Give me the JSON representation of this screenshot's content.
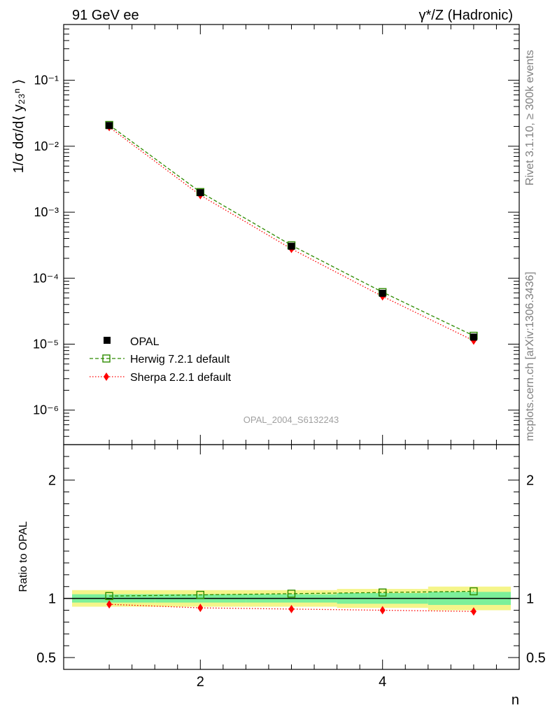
{
  "header": {
    "left": "91 GeV ee",
    "right": "γ*/Z (Hadronic)"
  },
  "side_notes": {
    "rivet": "Rivet 3.1.10, ≥ 300k events",
    "mcplots": "mcplots.cern.ch [arXiv:1306.3436]"
  },
  "analysis_id": "OPAL_2004_S6132243",
  "chart_data": [
    {
      "type": "line",
      "panel": "main",
      "ylabel": "1/σ dσ/d⟨ y₂₃ⁿ ⟩",
      "yscale": "log",
      "ylim": [
        3e-07,
        0.7
      ],
      "xlim": [
        0.5,
        5.5
      ],
      "x": [
        1,
        2,
        3,
        4,
        5
      ],
      "yticks": [
        {
          "value": 1e-06,
          "label": "10⁻⁶"
        },
        {
          "value": 1e-05,
          "label": "10⁻⁵"
        },
        {
          "value": 0.0001,
          "label": "10⁻⁴"
        },
        {
          "value": 0.001,
          "label": "10⁻³"
        },
        {
          "value": 0.01,
          "label": "10⁻²"
        },
        {
          "value": 0.1,
          "label": "10⁻¹"
        }
      ],
      "series": [
        {
          "name": "OPAL",
          "color": "#000000",
          "marker": "filled-square",
          "values": [
            0.0206,
            0.00198,
            0.000305,
            5.9e-05,
            1.28e-05
          ]
        },
        {
          "name": "Herwig 7.2.1 default",
          "color": "#2e8b00",
          "marker": "open-square",
          "line": "dashed",
          "values": [
            0.021,
            0.00202,
            0.000315,
            6.15e-05,
            1.34e-05
          ]
        },
        {
          "name": "Sherpa 2.2.1 default",
          "color": "#ff0000",
          "marker": "diamond",
          "line": "dotted",
          "values": [
            0.0195,
            0.00181,
            0.000278,
            5.3e-05,
            1.13e-05
          ]
        }
      ],
      "legend_position": "bottom-left"
    },
    {
      "type": "line",
      "panel": "ratio",
      "ylabel": "Ratio to OPAL",
      "xlabel": "n",
      "ylim": [
        0.4,
        2.3
      ],
      "xlim": [
        0.5,
        5.5
      ],
      "x": [
        1,
        2,
        3,
        4,
        5
      ],
      "xticks": [
        {
          "value": 2,
          "label": "2"
        },
        {
          "value": 4,
          "label": "4"
        }
      ],
      "yticks": [
        {
          "value": 0.5,
          "label": "0.5"
        },
        {
          "value": 1,
          "label": "1"
        },
        {
          "value": 2,
          "label": "2"
        }
      ],
      "bands": {
        "inner_color": "#7cf09a",
        "outer_color": "#f5f58a",
        "inner_halfwidth": [
          0.035,
          0.035,
          0.035,
          0.045,
          0.055
        ],
        "outer_halfwidth": [
          0.07,
          0.07,
          0.07,
          0.08,
          0.1
        ]
      },
      "series": [
        {
          "name": "Herwig 7.2.1 default",
          "color": "#2e8b00",
          "values": [
            1.02,
            1.03,
            1.04,
            1.05,
            1.06
          ]
        },
        {
          "name": "Sherpa 2.2.1 default",
          "color": "#ff0000",
          "values": [
            0.95,
            0.92,
            0.91,
            0.9,
            0.89
          ]
        }
      ]
    }
  ]
}
